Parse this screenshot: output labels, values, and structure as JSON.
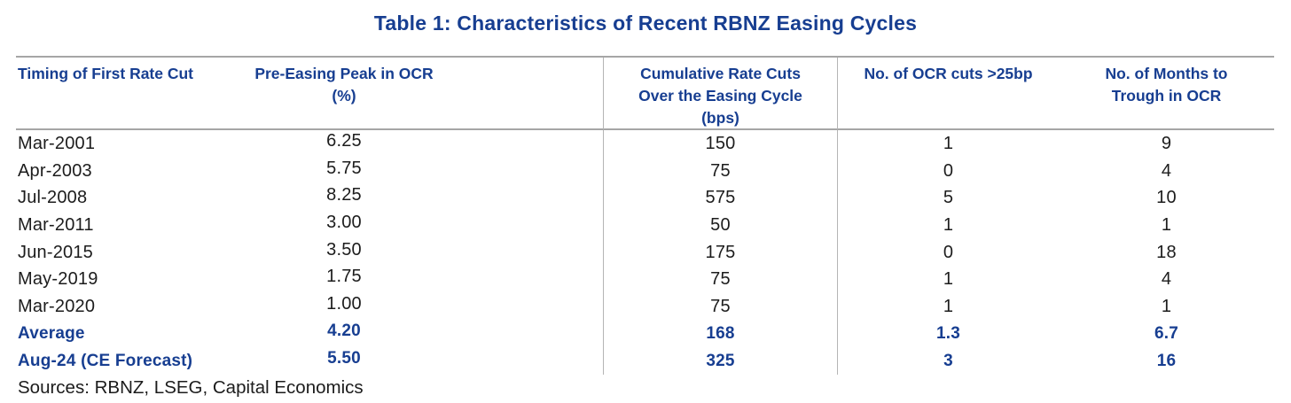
{
  "page": {
    "title": "Table 1: Characteristics of Recent RBNZ Easing Cycles",
    "sources_note": "Sources: RBNZ, LSEG, Capital Economics"
  },
  "colors": {
    "brand_blue": "#173E91",
    "data_text": "#1c1c1c",
    "rule_gray": "#a6a6a6",
    "divider_gray": "#b5b5b5",
    "background": "#ffffff"
  },
  "table": {
    "columns": [
      {
        "key": "timing",
        "label_lines": [
          "Timing of First Rate Cut"
        ],
        "align": "left",
        "divider_left": false
      },
      {
        "key": "peak-ocr",
        "label_lines": [
          "Pre-Easing Peak in OCR",
          "(%)"
        ],
        "align": "center",
        "divider_left": false
      },
      {
        "key": "cumulative-cuts",
        "label_lines": [
          "Cumulative Rate Cuts",
          "Over the Easing Cycle",
          "(bps)"
        ],
        "align": "center",
        "divider_left": true
      },
      {
        "key": "cuts-gt-25bp",
        "label_lines": [
          "No. of OCR cuts >25bp"
        ],
        "align": "center",
        "divider_left": true
      },
      {
        "key": "months-to-trough",
        "label_lines": [
          "No. of Months to",
          "Trough in OCR"
        ],
        "align": "center",
        "divider_left": false
      }
    ],
    "rows": [
      {
        "emphasis": false,
        "cells": [
          "Mar-2001",
          "6.25",
          "150",
          "1",
          "9"
        ]
      },
      {
        "emphasis": false,
        "cells": [
          "Apr-2003",
          "5.75",
          "75",
          "0",
          "4"
        ]
      },
      {
        "emphasis": false,
        "cells": [
          "Jul-2008",
          "8.25",
          "575",
          "5",
          "10"
        ]
      },
      {
        "emphasis": false,
        "cells": [
          "Mar-2011",
          "3.00",
          "50",
          "1",
          "1"
        ]
      },
      {
        "emphasis": false,
        "cells": [
          "Jun-2015",
          "3.50",
          "175",
          "0",
          "18"
        ]
      },
      {
        "emphasis": false,
        "cells": [
          "May-2019",
          "1.75",
          "75",
          "1",
          "4"
        ]
      },
      {
        "emphasis": false,
        "cells": [
          "Mar-2020",
          "1.00",
          "75",
          "1",
          "1"
        ]
      },
      {
        "emphasis": true,
        "cells": [
          "Average",
          "4.20",
          "168",
          "1.3",
          "6.7"
        ]
      },
      {
        "emphasis": true,
        "cells": [
          "Aug-24 (CE Forecast)",
          "5.50",
          "325",
          "3",
          "16"
        ]
      }
    ]
  },
  "chart_data": {
    "type": "table",
    "title": "Table 1: Characteristics of Recent RBNZ Easing Cycles",
    "columns": [
      "Timing of First Rate Cut",
      "Pre-Easing Peak in OCR (%)",
      "Cumulative Rate Cuts Over the Easing Cycle (bps)",
      "No. of OCR cuts >25bp",
      "No. of Months to Trough in OCR"
    ],
    "rows": [
      [
        "Mar-2001",
        6.25,
        150,
        1,
        9
      ],
      [
        "Apr-2003",
        5.75,
        75,
        0,
        4
      ],
      [
        "Jul-2008",
        8.25,
        575,
        5,
        10
      ],
      [
        "Mar-2011",
        3.0,
        50,
        1,
        1
      ],
      [
        "Jun-2015",
        3.5,
        175,
        0,
        18
      ],
      [
        "May-2019",
        1.75,
        75,
        1,
        4
      ],
      [
        "Mar-2020",
        1.0,
        75,
        1,
        1
      ],
      [
        "Average",
        4.2,
        168,
        1.3,
        6.7
      ],
      [
        "Aug-24 (CE Forecast)",
        5.5,
        325,
        3,
        16
      ]
    ],
    "footnote": "Sources: RBNZ, LSEG, Capital Economics"
  }
}
